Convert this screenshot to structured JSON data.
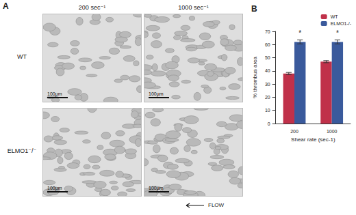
{
  "panel_a": {
    "label": "A",
    "columns": [
      "200 sec⁻¹",
      "1000 sec⁻¹"
    ],
    "rows": [
      "WT",
      "ELMO1⁻/⁻"
    ],
    "scale_bar": "100µm",
    "flow": "FLOW"
  },
  "chart_data": {
    "type": "bar",
    "title": "B",
    "categories": [
      "200",
      "1000"
    ],
    "x_label": "Shear rate (sec-1)",
    "y_label": "% thrombus area",
    "ylim": [
      0,
      70
    ],
    "yticks": [
      0,
      10,
      20,
      30,
      40,
      50,
      60,
      70
    ],
    "grid": false,
    "legend": "top-right",
    "series": [
      {
        "name": "WT",
        "color": "#c0314a",
        "values": [
          38,
          47
        ],
        "errors": [
          0.8,
          0.8
        ]
      },
      {
        "name": "ELMO1-/-",
        "color": "#3a5a9c",
        "values": [
          62,
          62
        ],
        "errors": [
          1.5,
          1.5
        ],
        "annotations": [
          "*",
          "*"
        ]
      }
    ]
  }
}
